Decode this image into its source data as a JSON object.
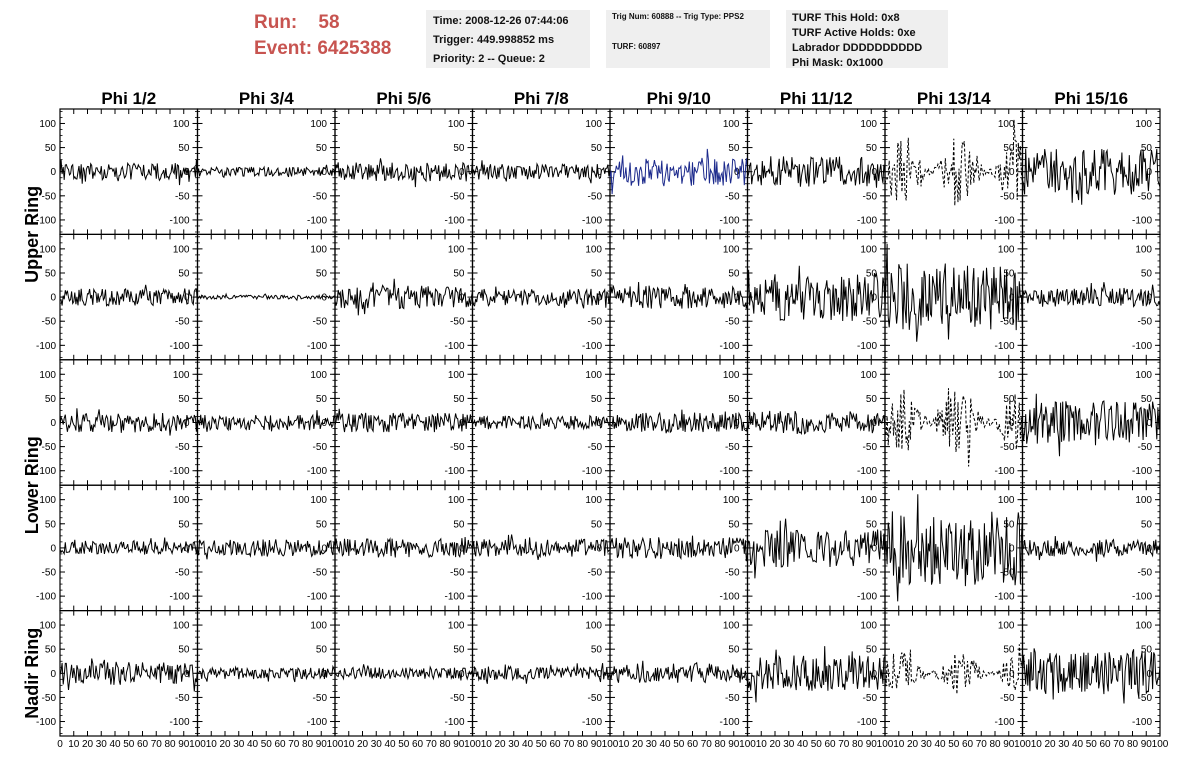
{
  "header": {
    "run_label": "Run:",
    "run_value": "58",
    "event_label": "Event:",
    "event_value": "6425388"
  },
  "info_time": {
    "time": "Time: 2008-12-26 07:44:06",
    "trigger": "Trigger: 449.998852 ms",
    "priority": "Priority: 2 -- Queue: 2"
  },
  "info_trig": {
    "trig": "Trig Num: 60888 -- Trig Type: PPS2",
    "turf": "TURF: 60897"
  },
  "info_turf": {
    "hold": "TURF This Hold: 0x8",
    "active": "TURF Active Holds: 0xe",
    "labrador": "Labrador DDDDDDDDDD",
    "phimask": "Phi Mask: 0x1000"
  },
  "chart_data": {
    "type": "line",
    "columns": [
      "Phi 1/2",
      "Phi 3/4",
      "Phi 5/6",
      "Phi 7/8",
      "Phi 9/10",
      "Phi 11/12",
      "Phi 13/14",
      "Phi 15/16"
    ],
    "rows": [
      "Upper Ring",
      "Lower Ring",
      "Nadir Ring"
    ],
    "xlim": [
      0,
      100
    ],
    "ylim": [
      -130,
      130
    ],
    "yticks": [
      -100,
      -50,
      0,
      50,
      100
    ],
    "xticks": [
      0,
      10,
      20,
      30,
      40,
      50,
      60,
      70,
      80,
      90,
      100
    ],
    "colors": {
      "normal": "#000000",
      "highlight": "#1c2a8c"
    },
    "panels": [
      {
        "row": 1,
        "col": 1,
        "amplitude": 18,
        "style": "solid"
      },
      {
        "row": 1,
        "col": 2,
        "amplitude": 10,
        "style": "solid"
      },
      {
        "row": 1,
        "col": 3,
        "amplitude": 20,
        "style": "solid"
      },
      {
        "row": 1,
        "col": 4,
        "amplitude": 16,
        "style": "solid"
      },
      {
        "row": 1,
        "col": 5,
        "amplitude": 30,
        "style": "highlight"
      },
      {
        "row": 1,
        "col": 6,
        "amplitude": 32,
        "style": "solid"
      },
      {
        "row": 1,
        "col": 7,
        "amplitude": 75,
        "style": "dashed"
      },
      {
        "row": 1,
        "col": 8,
        "amplitude": 48,
        "style": "solid"
      },
      {
        "row": 2,
        "col": 1,
        "amplitude": 18,
        "style": "solid"
      },
      {
        "row": 2,
        "col": 2,
        "amplitude": 4,
        "style": "solid"
      },
      {
        "row": 2,
        "col": 3,
        "amplitude": 25,
        "style": "solid"
      },
      {
        "row": 2,
        "col": 4,
        "amplitude": 18,
        "style": "solid"
      },
      {
        "row": 2,
        "col": 5,
        "amplitude": 24,
        "style": "solid"
      },
      {
        "row": 2,
        "col": 6,
        "amplitude": 50,
        "style": "solid"
      },
      {
        "row": 2,
        "col": 7,
        "amplitude": 70,
        "style": "solid"
      },
      {
        "row": 2,
        "col": 8,
        "amplitude": 20,
        "style": "solid"
      },
      {
        "row": 3,
        "col": 1,
        "amplitude": 20,
        "style": "solid"
      },
      {
        "row": 3,
        "col": 2,
        "amplitude": 16,
        "style": "solid"
      },
      {
        "row": 3,
        "col": 3,
        "amplitude": 20,
        "style": "solid"
      },
      {
        "row": 3,
        "col": 4,
        "amplitude": 14,
        "style": "solid"
      },
      {
        "row": 3,
        "col": 5,
        "amplitude": 20,
        "style": "solid"
      },
      {
        "row": 3,
        "col": 6,
        "amplitude": 24,
        "style": "solid"
      },
      {
        "row": 3,
        "col": 7,
        "amplitude": 70,
        "style": "dashed"
      },
      {
        "row": 3,
        "col": 8,
        "amplitude": 45,
        "style": "solid"
      },
      {
        "row": 4,
        "col": 1,
        "amplitude": 14,
        "style": "solid"
      },
      {
        "row": 4,
        "col": 2,
        "amplitude": 18,
        "style": "solid"
      },
      {
        "row": 4,
        "col": 3,
        "amplitude": 20,
        "style": "solid"
      },
      {
        "row": 4,
        "col": 4,
        "amplitude": 18,
        "style": "solid"
      },
      {
        "row": 4,
        "col": 5,
        "amplitude": 22,
        "style": "solid"
      },
      {
        "row": 4,
        "col": 6,
        "amplitude": 40,
        "style": "solid"
      },
      {
        "row": 4,
        "col": 7,
        "amplitude": 80,
        "style": "solid"
      },
      {
        "row": 4,
        "col": 8,
        "amplitude": 18,
        "style": "solid"
      },
      {
        "row": 5,
        "col": 1,
        "amplitude": 24,
        "style": "solid"
      },
      {
        "row": 5,
        "col": 2,
        "amplitude": 12,
        "style": "solid"
      },
      {
        "row": 5,
        "col": 3,
        "amplitude": 12,
        "style": "solid"
      },
      {
        "row": 5,
        "col": 4,
        "amplitude": 14,
        "style": "solid"
      },
      {
        "row": 5,
        "col": 5,
        "amplitude": 20,
        "style": "solid"
      },
      {
        "row": 5,
        "col": 6,
        "amplitude": 38,
        "style": "solid"
      },
      {
        "row": 5,
        "col": 7,
        "amplitude": 45,
        "style": "dashed"
      },
      {
        "row": 5,
        "col": 8,
        "amplitude": 45,
        "style": "solid"
      }
    ]
  }
}
